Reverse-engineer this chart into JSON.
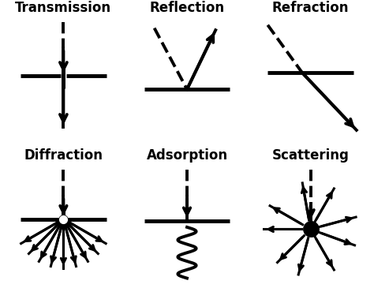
{
  "bg_color": "#ffffff",
  "text_color": "#000000",
  "line_color": "#000000",
  "titles": [
    "Transmission",
    "Reflection",
    "Refraction",
    "Diffraction",
    "Adsorption",
    "Scattering"
  ],
  "title_fontsize": 12,
  "title_fontweight": "bold"
}
